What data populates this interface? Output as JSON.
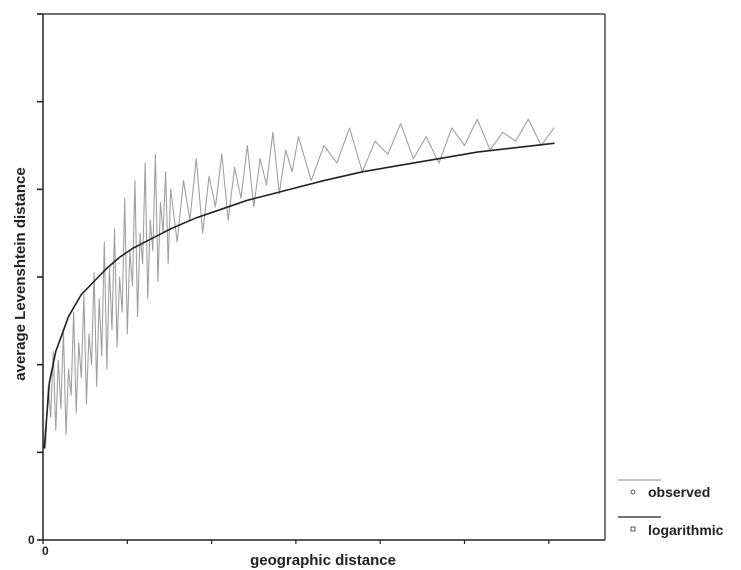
{
  "chart_data": {
    "type": "line",
    "title": "",
    "xlabel": "geographic distance",
    "ylabel": "average Levenshtein distance",
    "x_tick_labels": [
      "0"
    ],
    "y_tick_labels": [
      "0"
    ],
    "grid": false,
    "legend_position": "bottom-right",
    "colors": {
      "observed": "#a0a0a0",
      "logarithmic": "#222222",
      "axis": "#222222"
    },
    "series": [
      {
        "name": "observed",
        "x": [
          2,
          4,
          6,
          8,
          10,
          12,
          14,
          16,
          18,
          20,
          22,
          24,
          26,
          28,
          30,
          32,
          34,
          36,
          38,
          40,
          42,
          44,
          46,
          48,
          50,
          52,
          54,
          56,
          58,
          60,
          62,
          64,
          66,
          68,
          70,
          72,
          74,
          76,
          78,
          80,
          82,
          84,
          86,
          88,
          90,
          92,
          94,
          96,
          98,
          100,
          105,
          110,
          115,
          120,
          125,
          130,
          135,
          140,
          145,
          150,
          155,
          160,
          165,
          170,
          175,
          180,
          185,
          190,
          195,
          200,
          210,
          220,
          230,
          240,
          250,
          260,
          270,
          280,
          290,
          300,
          310,
          320,
          330,
          340,
          350,
          360,
          370,
          380,
          390,
          400
        ],
        "y": [
          0.21,
          0.35,
          0.28,
          0.43,
          0.25,
          0.41,
          0.3,
          0.48,
          0.24,
          0.39,
          0.33,
          0.52,
          0.29,
          0.45,
          0.37,
          0.56,
          0.31,
          0.47,
          0.4,
          0.61,
          0.35,
          0.55,
          0.42,
          0.68,
          0.39,
          0.62,
          0.48,
          0.71,
          0.44,
          0.6,
          0.52,
          0.78,
          0.47,
          0.66,
          0.58,
          0.82,
          0.51,
          0.7,
          0.63,
          0.86,
          0.55,
          0.73,
          0.66,
          0.88,
          0.59,
          0.77,
          0.7,
          0.84,
          0.63,
          0.8,
          0.68,
          0.82,
          0.73,
          0.87,
          0.7,
          0.83,
          0.76,
          0.88,
          0.73,
          0.85,
          0.78,
          0.9,
          0.76,
          0.87,
          0.81,
          0.93,
          0.79,
          0.89,
          0.84,
          0.92,
          0.82,
          0.9,
          0.86,
          0.94,
          0.84,
          0.91,
          0.88,
          0.95,
          0.87,
          0.92,
          0.86,
          0.94,
          0.9,
          0.96,
          0.89,
          0.93,
          0.91,
          0.96,
          0.9,
          0.94
        ]
      },
      {
        "name": "logarithmic",
        "x": [
          1,
          5,
          10,
          20,
          30,
          40,
          50,
          60,
          70,
          80,
          100,
          120,
          140,
          160,
          180,
          200,
          220,
          250,
          280,
          310,
          340,
          370,
          400
        ],
        "y": [
          0.21,
          0.36,
          0.43,
          0.51,
          0.56,
          0.59,
          0.62,
          0.645,
          0.665,
          0.68,
          0.71,
          0.735,
          0.755,
          0.775,
          0.79,
          0.805,
          0.82,
          0.84,
          0.855,
          0.87,
          0.885,
          0.895,
          0.905
        ]
      }
    ],
    "xlim": [
      0,
      440
    ],
    "ylim": [
      0,
      1.2
    ]
  },
  "legend": {
    "observed_label": "observed",
    "logarithmic_label": "logarithmic"
  }
}
